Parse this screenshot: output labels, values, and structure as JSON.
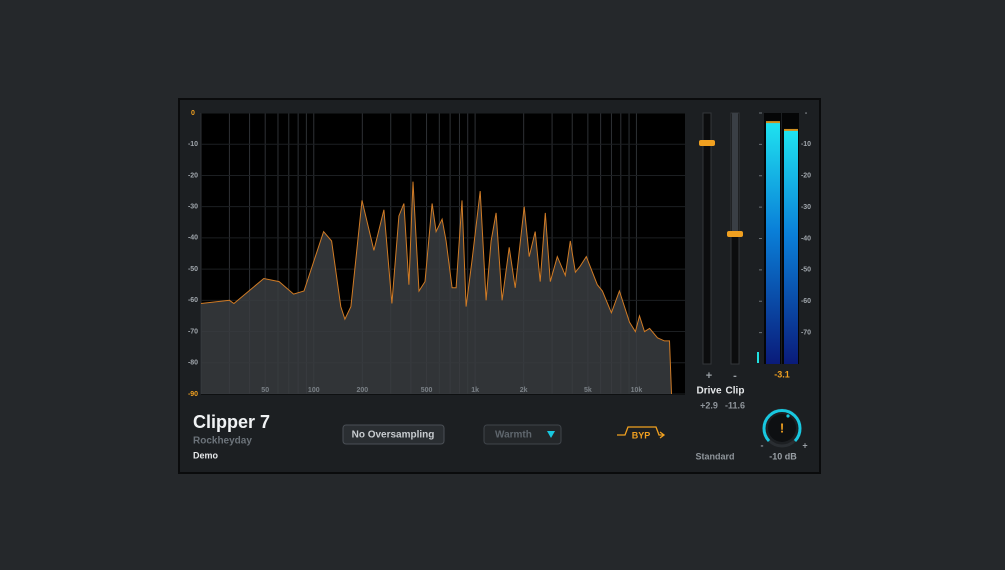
{
  "plugin": {
    "name": "Clipper 7",
    "vendor": "Rockheyday",
    "license": "Demo"
  },
  "spectrum": {
    "type": "area",
    "log_x": true,
    "xlim": [
      20,
      20000
    ],
    "ylim": [
      -90,
      0
    ],
    "yticks": [
      0,
      -10,
      -20,
      -30,
      -40,
      -50,
      -60,
      -70,
      -80,
      -90
    ],
    "xticks": [
      50,
      100,
      200,
      500,
      {
        "value": 1000,
        "label": "1k"
      },
      {
        "value": 2000,
        "label": "2k"
      },
      {
        "value": 5000,
        "label": "5k"
      },
      {
        "value": 10000,
        "label": "10k"
      }
    ],
    "xgrid": [
      20,
      30,
      40,
      50,
      60,
      70,
      80,
      90,
      100,
      200,
      300,
      400,
      500,
      600,
      700,
      800,
      900,
      1000,
      2000,
      3000,
      4000,
      5000,
      6000,
      7000,
      8000,
      9000,
      10000
    ],
    "freq": [
      20,
      30,
      32,
      49,
      61,
      75,
      87,
      115,
      129,
      147,
      156,
      170,
      199,
      236,
      272,
      305,
      337,
      362,
      389,
      412,
      449,
      489,
      541,
      573,
      624,
      661,
      720,
      762,
      830,
      880,
      958,
      1075,
      1170,
      1257,
      1350,
      1471,
      1627,
      1772,
      2014,
      2163,
      2358,
      2533,
      2723,
      2926,
      3230,
      3623,
      3892,
      4182,
      4488,
      4888,
      5723,
      6150,
      6995,
      7840,
      9055,
      9860,
      10440,
      11220,
      12060,
      13500,
      14930,
      16030,
      16500
    ],
    "db": [
      -61,
      -60,
      -61,
      -53,
      -54,
      -58,
      -57,
      -38,
      -41,
      -62,
      -66,
      -62,
      -28,
      -44,
      -31,
      -61,
      -33,
      -29,
      -55,
      -22,
      -57,
      -54,
      -29,
      -38,
      -34,
      -41,
      -56,
      -56,
      -28,
      -62,
      -47,
      -25,
      -60,
      -41,
      -32,
      -60,
      -43,
      -56,
      -30,
      -46,
      -38,
      -54,
      -32,
      -54,
      -46,
      -52,
      -41,
      -51,
      -49,
      -46,
      -55,
      -57,
      -64,
      -57,
      -67,
      -70,
      -65,
      -70,
      -69,
      -72,
      -73,
      -73,
      -90
    ],
    "color": "#d07b25",
    "fill": "#3a3d41"
  },
  "controls": {
    "oversampling": "No Oversampling",
    "warmth": "Warmth",
    "bypass": "BYP",
    "mode": "Standard"
  },
  "sliders": [
    {
      "name": "Drive",
      "symbol": "+",
      "value": "+2.9"
    },
    {
      "name": "Clip",
      "symbol": "-",
      "value": "-11.6"
    }
  ],
  "meter": {
    "ylim": [
      -80,
      0
    ],
    "yticks": [
      {
        "value": 0,
        "label": "-"
      },
      -10,
      -20,
      -30,
      -40,
      -50,
      -60,
      -70
    ],
    "levels": [
      -2.9,
      -5.4
    ],
    "peak": -3.1
  },
  "output": {
    "minus": "-",
    "plus": "+",
    "value": "-10 dB"
  }
}
